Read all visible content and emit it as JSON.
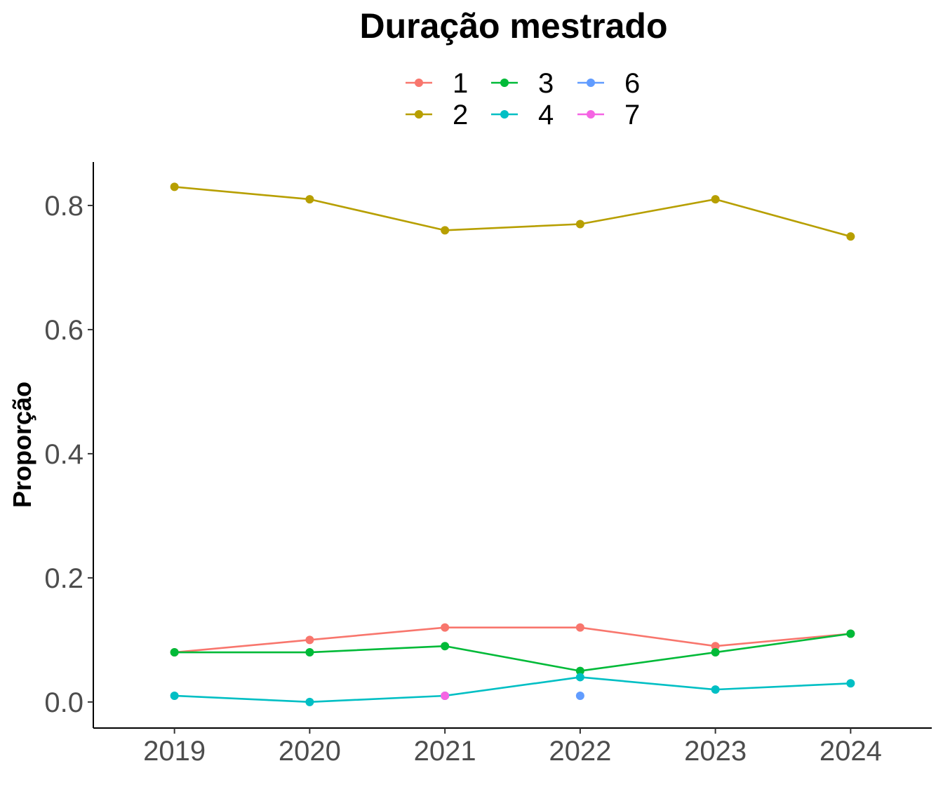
{
  "chart_data": {
    "type": "line",
    "title": "",
    "xlabel": "",
    "ylabel": "Proporção",
    "legend_title": "Duração mestrado",
    "legend_position": "top",
    "grid": false,
    "x": [
      2019,
      2020,
      2021,
      2022,
      2023,
      2024
    ],
    "x_tick_labels": [
      "2019",
      "2020",
      "2021",
      "2022",
      "2023",
      "2024"
    ],
    "y_ticks": [
      0.0,
      0.2,
      0.4,
      0.6,
      0.8
    ],
    "y_tick_labels": [
      "0.0",
      "0.2",
      "0.4",
      "0.6",
      "0.8"
    ],
    "ylim": [
      -0.042,
      0.87
    ],
    "xlim": [
      2018.4,
      2024.6
    ],
    "series": [
      {
        "name": "1",
        "color": "#F8766D",
        "points": [
          [
            2019,
            0.08
          ],
          [
            2020,
            0.1
          ],
          [
            2021,
            0.12
          ],
          [
            2022,
            0.12
          ],
          [
            2023,
            0.09
          ],
          [
            2024,
            0.11
          ]
        ]
      },
      {
        "name": "2",
        "color": "#B79F00",
        "points": [
          [
            2019,
            0.83
          ],
          [
            2020,
            0.81
          ],
          [
            2021,
            0.76
          ],
          [
            2022,
            0.77
          ],
          [
            2023,
            0.81
          ],
          [
            2024,
            0.75
          ]
        ]
      },
      {
        "name": "3",
        "color": "#00BA38",
        "points": [
          [
            2019,
            0.08
          ],
          [
            2020,
            0.08
          ],
          [
            2021,
            0.09
          ],
          [
            2022,
            0.05
          ],
          [
            2023,
            0.08
          ],
          [
            2024,
            0.11
          ]
        ]
      },
      {
        "name": "4",
        "color": "#00BFC4",
        "points": [
          [
            2019,
            0.01
          ],
          [
            2020,
            0.0
          ],
          [
            2021,
            0.01
          ],
          [
            2022,
            0.04
          ],
          [
            2023,
            0.02
          ],
          [
            2024,
            0.03
          ]
        ]
      },
      {
        "name": "6",
        "color": "#619CFF",
        "points": [
          [
            2022,
            0.01
          ]
        ]
      },
      {
        "name": "7",
        "color": "#F564E3",
        "points": [
          [
            2021,
            0.01
          ]
        ]
      }
    ]
  }
}
